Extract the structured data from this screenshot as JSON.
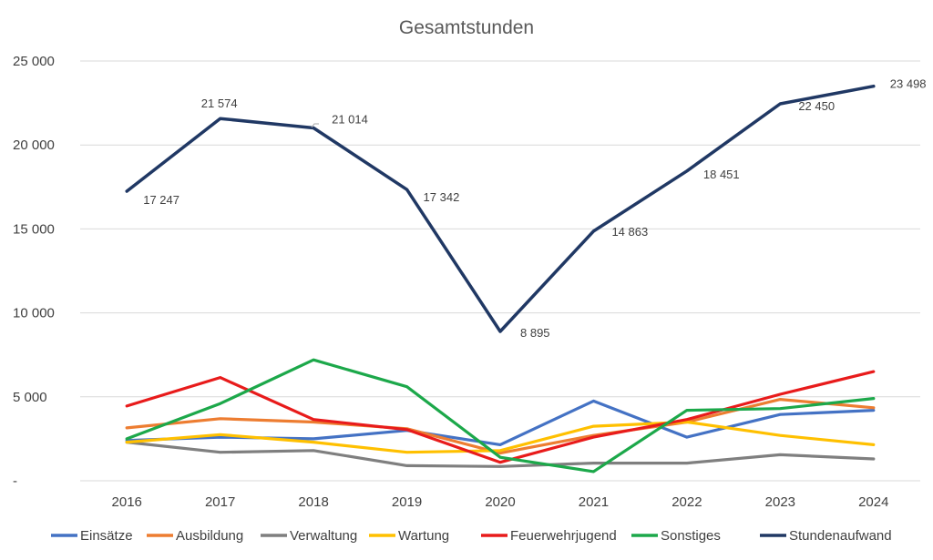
{
  "chart_data": {
    "type": "line",
    "title": "Gesamtstunden",
    "categories": [
      "2016",
      "2017",
      "2018",
      "2019",
      "2020",
      "2021",
      "2022",
      "2023",
      "2024"
    ],
    "ylim": [
      0,
      25000
    ],
    "yticks": [
      {
        "value": 0,
        "label": "-"
      },
      {
        "value": 5000,
        "label": "5 000"
      },
      {
        "value": 10000,
        "label": "10 000"
      },
      {
        "value": 15000,
        "label": "15 000"
      },
      {
        "value": 20000,
        "label": "20 000"
      },
      {
        "value": 25000,
        "label": "25 000"
      }
    ],
    "grid": true,
    "legend_position": "bottom",
    "series": [
      {
        "name": "Einsätze",
        "color": "#4472C4",
        "values": [
          2400,
          2600,
          2500,
          3000,
          2150,
          4750,
          2600,
          3950,
          4200
        ]
      },
      {
        "name": "Ausbildung",
        "color": "#ED7D31",
        "values": [
          3150,
          3700,
          3500,
          3100,
          1650,
          2700,
          3500,
          4850,
          4350
        ]
      },
      {
        "name": "Verwaltung",
        "color": "#7F7F7F",
        "values": [
          2300,
          1700,
          1800,
          900,
          850,
          1050,
          1050,
          1550,
          1300
        ]
      },
      {
        "name": "Wartung",
        "color": "#FFC000",
        "values": [
          2300,
          2750,
          2300,
          1700,
          1800,
          3250,
          3500,
          2700,
          2150
        ]
      },
      {
        "name": "Feuerwehrjugend",
        "color": "#E81B1B",
        "values": [
          4450,
          6150,
          3650,
          3050,
          1100,
          2600,
          3650,
          5150,
          6500
        ]
      },
      {
        "name": "Sonstiges",
        "color": "#1CA84A",
        "values": [
          2500,
          4600,
          7200,
          5600,
          1400,
          550,
          4200,
          4300,
          4900
        ]
      },
      {
        "name": "Stundenaufwand",
        "color": "#203864",
        "values": [
          17247,
          21574,
          21014,
          17342,
          8895,
          14863,
          18451,
          22450,
          23498
        ],
        "data_labels": [
          "17 247",
          "21 574",
          "21 014",
          "17 342",
          "8 895",
          "14 863",
          "18 451",
          "22 450",
          "23 498"
        ]
      }
    ]
  }
}
